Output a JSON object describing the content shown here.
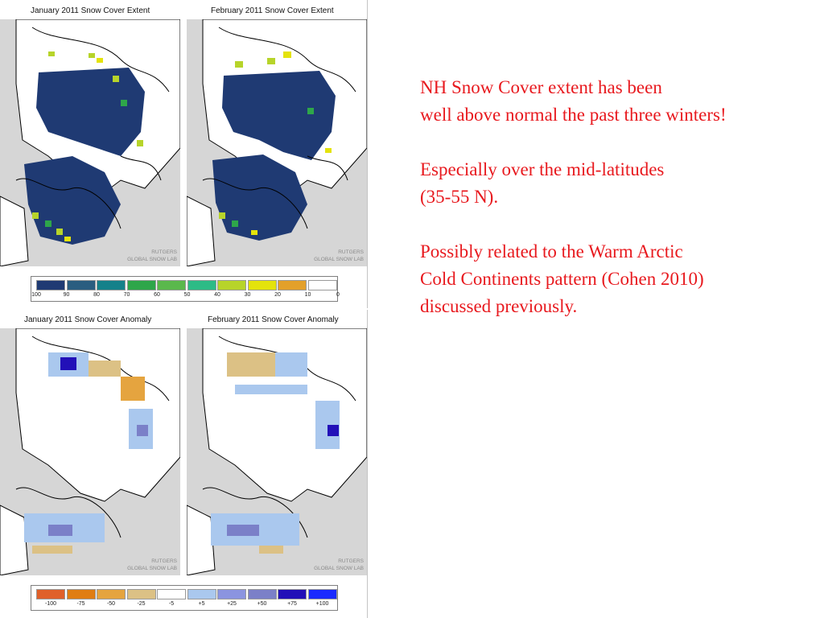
{
  "extent": {
    "panels": [
      {
        "title": "January 2011 Snow Cover Extent"
      },
      {
        "title": "February 2011 Snow Cover Extent"
      }
    ],
    "credit": [
      "RUTGERS",
      "GLOBAL SNOW LAB"
    ],
    "legend": {
      "colors": [
        "#1f3a73",
        "#2a5d80",
        "#14818a",
        "#2ea64a",
        "#5ab84c",
        "#2dbb86",
        "#b7d42a",
        "#e4e30c",
        "#e3a02a",
        "#ffffff"
      ],
      "labels": [
        "100",
        "90",
        "80",
        "70",
        "60",
        "50",
        "40",
        "30",
        "20",
        "10",
        "0"
      ]
    }
  },
  "anomaly": {
    "panels": [
      {
        "title": "January 2011 Snow Cover Anomaly"
      },
      {
        "title": "February 2011 Snow Cover Anomaly"
      }
    ],
    "credit": [
      "RUTGERS",
      "GLOBAL SNOW LAB"
    ],
    "legend": {
      "colors": [
        "#e0602a",
        "#e07d12",
        "#e5a43f",
        "#dcc185",
        "#ffffff",
        "#aac8ee",
        "#8b94e0",
        "#7b80c8",
        "#2210b8",
        "#1a2aff"
      ],
      "labels": [
        "-100",
        "-75",
        "-50",
        "-25",
        "-5",
        "+5",
        "+25",
        "+50",
        "+75",
        "+100"
      ]
    }
  },
  "palette": {
    "land_no_data": "#d6d6d6",
    "ocean": "#ffffff",
    "snow_full": "#1f3a73",
    "text_accent": "#e8191e"
  },
  "notes": {
    "p1": [
      "NH Snow Cover extent has been",
      "well above normal the past three winters!"
    ],
    "p2": [
      "Especially over the mid-latitudes",
      "(35-55 N)."
    ],
    "p3": [
      "Possibly related to the Warm Arctic",
      "Cold Continents pattern (Cohen 2010)",
      "discussed previously."
    ]
  }
}
